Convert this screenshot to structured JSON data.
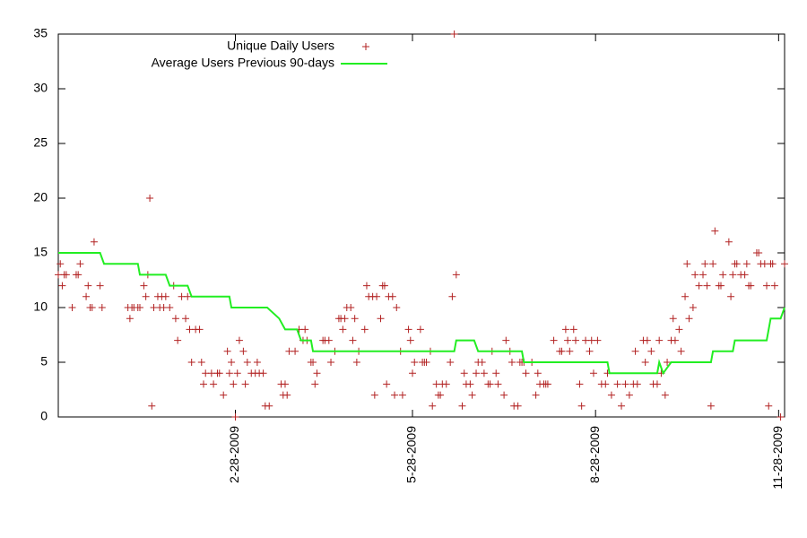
{
  "chart_data": {
    "type": "scatter",
    "xlim": [
      "2008-12-01",
      "2009-12-01"
    ],
    "xticks": [
      {
        "value": "2009-02-28",
        "label": "2-28-2009"
      },
      {
        "value": "2009-05-28",
        "label": "5-28-2009"
      },
      {
        "value": "2009-08-28",
        "label": "8-28-2009"
      },
      {
        "value": "2009-11-28",
        "label": "11-28-2009"
      }
    ],
    "ylim": [
      0,
      35
    ],
    "yticks": [
      0,
      5,
      10,
      15,
      20,
      25,
      30,
      35
    ],
    "legend": "top-left",
    "series": [
      {
        "name": "Unique Daily Users",
        "color": "#b22222",
        "marker": "+",
        "x": [
          "2008-12-01",
          "2008-12-02",
          "2008-12-03",
          "2008-12-04",
          "2008-12-05",
          "2008-12-08",
          "2008-12-10",
          "2008-12-11",
          "2008-12-12",
          "2008-12-15",
          "2008-12-16",
          "2008-12-17",
          "2008-12-18",
          "2008-12-19",
          "2008-12-22",
          "2008-12-23",
          "2009-01-05",
          "2009-01-06",
          "2009-01-07",
          "2009-01-08",
          "2009-01-10",
          "2009-01-11",
          "2009-01-13",
          "2009-01-14",
          "2009-01-15",
          "2009-01-16",
          "2009-01-17",
          "2009-01-18",
          "2009-01-20",
          "2009-01-21",
          "2009-01-22",
          "2009-01-23",
          "2009-01-24",
          "2009-01-26",
          "2009-01-28",
          "2009-01-29",
          "2009-01-30",
          "2009-02-01",
          "2009-02-03",
          "2009-02-04",
          "2009-02-05",
          "2009-02-06",
          "2009-02-08",
          "2009-02-10",
          "2009-02-11",
          "2009-02-12",
          "2009-02-13",
          "2009-02-16",
          "2009-02-17",
          "2009-02-19",
          "2009-02-20",
          "2009-02-22",
          "2009-02-24",
          "2009-02-25",
          "2009-02-26",
          "2009-02-27",
          "2009-02-28",
          "2009-03-01",
          "2009-03-02",
          "2009-03-04",
          "2009-03-05",
          "2009-03-06",
          "2009-03-08",
          "2009-03-10",
          "2009-03-11",
          "2009-03-12",
          "2009-03-14",
          "2009-03-15",
          "2009-03-17",
          "2009-03-23",
          "2009-03-24",
          "2009-03-25",
          "2009-03-26",
          "2009-03-27",
          "2009-03-30",
          "2009-04-01",
          "2009-04-03",
          "2009-04-04",
          "2009-04-05",
          "2009-04-07",
          "2009-04-08",
          "2009-04-09",
          "2009-04-10",
          "2009-04-13",
          "2009-04-14",
          "2009-04-16",
          "2009-04-17",
          "2009-04-19",
          "2009-04-21",
          "2009-04-22",
          "2009-04-23",
          "2009-04-24",
          "2009-04-25",
          "2009-04-27",
          "2009-04-28",
          "2009-04-29",
          "2009-04-30",
          "2009-05-01",
          "2009-05-04",
          "2009-05-05",
          "2009-05-06",
          "2009-05-08",
          "2009-05-09",
          "2009-05-10",
          "2009-05-12",
          "2009-05-13",
          "2009-05-14",
          "2009-05-15",
          "2009-05-16",
          "2009-05-18",
          "2009-05-19",
          "2009-05-20",
          "2009-05-22",
          "2009-05-23",
          "2009-05-26",
          "2009-05-27",
          "2009-05-28",
          "2009-05-29",
          "2009-06-01",
          "2009-06-02",
          "2009-06-03",
          "2009-06-04",
          "2009-06-06",
          "2009-06-07",
          "2009-06-09",
          "2009-06-10",
          "2009-06-11",
          "2009-06-12",
          "2009-06-14",
          "2009-06-16",
          "2009-06-17",
          "2009-06-18",
          "2009-06-19",
          "2009-06-22",
          "2009-06-23",
          "2009-06-24",
          "2009-06-26",
          "2009-06-27",
          "2009-06-29",
          "2009-06-30",
          "2009-07-02",
          "2009-07-03",
          "2009-07-05",
          "2009-07-06",
          "2009-07-07",
          "2009-07-09",
          "2009-07-10",
          "2009-07-13",
          "2009-07-14",
          "2009-07-16",
          "2009-07-17",
          "2009-07-18",
          "2009-07-20",
          "2009-07-21",
          "2009-07-22",
          "2009-07-23",
          "2009-07-24",
          "2009-07-27",
          "2009-07-29",
          "2009-07-30",
          "2009-07-31",
          "2009-08-02",
          "2009-08-03",
          "2009-08-04",
          "2009-08-07",
          "2009-08-10",
          "2009-08-11",
          "2009-08-13",
          "2009-08-14",
          "2009-08-15",
          "2009-08-17",
          "2009-08-18",
          "2009-08-20",
          "2009-08-21",
          "2009-08-23",
          "2009-08-25",
          "2009-08-26",
          "2009-08-27",
          "2009-08-29",
          "2009-08-31",
          "2009-09-02",
          "2009-09-03",
          "2009-09-05",
          "2009-09-08",
          "2009-09-10",
          "2009-09-12",
          "2009-09-14",
          "2009-09-16",
          "2009-09-17",
          "2009-09-18",
          "2009-09-21",
          "2009-09-22",
          "2009-09-23",
          "2009-09-25",
          "2009-09-26",
          "2009-09-28",
          "2009-09-29",
          "2009-09-30",
          "2009-10-02",
          "2009-10-03",
          "2009-10-05",
          "2009-10-06",
          "2009-10-07",
          "2009-10-09",
          "2009-10-10",
          "2009-10-12",
          "2009-10-13",
          "2009-10-14",
          "2009-10-16",
          "2009-10-17",
          "2009-10-19",
          "2009-10-21",
          "2009-10-22",
          "2009-10-23",
          "2009-10-25",
          "2009-10-26",
          "2009-10-27",
          "2009-10-29",
          "2009-10-30",
          "2009-10-31",
          "2009-11-03",
          "2009-11-04",
          "2009-11-05",
          "2009-11-06",
          "2009-11-07",
          "2009-11-09",
          "2009-11-11",
          "2009-11-12",
          "2009-11-13",
          "2009-11-14",
          "2009-11-17",
          "2009-11-18",
          "2009-11-19",
          "2009-11-21",
          "2009-11-22",
          "2009-11-23",
          "2009-11-24",
          "2009-11-25",
          "2009-11-26",
          "2009-11-29",
          "2009-12-01"
        ],
        "values": [
          13,
          14,
          12,
          13,
          13,
          10,
          13,
          13,
          14,
          11,
          12,
          10,
          10,
          16,
          12,
          10,
          10,
          9,
          10,
          10,
          10,
          10,
          12,
          11,
          13,
          20,
          1,
          10,
          11,
          10,
          11,
          10,
          11,
          10,
          12,
          9,
          7,
          11,
          9,
          11,
          8,
          5,
          8,
          8,
          5,
          3,
          4,
          4,
          3,
          4,
          4,
          2,
          6,
          4,
          5,
          3,
          0,
          4,
          7,
          6,
          3,
          5,
          4,
          4,
          5,
          4,
          4,
          1,
          1,
          3,
          2,
          3,
          2,
          6,
          6,
          8,
          7,
          8,
          7,
          5,
          5,
          3,
          4,
          7,
          7,
          7,
          5,
          6,
          9,
          9,
          8,
          9,
          10,
          10,
          7,
          9,
          5,
          6,
          8,
          12,
          11,
          11,
          2,
          11,
          9,
          12,
          12,
          3,
          11,
          11,
          2,
          10,
          6,
          2,
          8,
          7,
          4,
          5,
          8,
          5,
          5,
          5,
          6,
          1,
          3,
          2,
          2,
          3,
          3,
          5,
          11,
          35,
          13,
          1,
          4,
          3,
          3,
          2,
          4,
          5,
          5,
          4,
          3,
          3,
          6,
          4,
          3,
          2,
          7,
          6,
          5,
          1,
          1,
          5,
          5,
          5,
          4,
          5,
          2,
          4,
          3,
          3,
          3,
          3,
          7,
          6,
          6,
          8,
          7,
          6,
          8,
          7,
          3,
          1,
          7,
          6,
          7,
          4,
          7,
          3,
          3,
          4,
          2,
          3,
          1,
          3,
          2,
          3,
          6,
          3,
          7,
          5,
          7,
          6,
          3,
          3,
          7,
          4,
          2,
          5,
          7,
          9,
          7,
          8,
          6,
          11,
          14,
          9,
          10,
          13,
          12,
          13,
          14,
          12,
          1,
          14,
          17,
          12,
          12,
          13,
          16,
          11,
          13,
          14,
          14,
          13,
          13,
          14,
          12,
          12,
          15,
          15,
          14,
          14,
          12,
          1,
          14,
          14,
          12,
          0,
          14
        ]
      },
      {
        "name": "Average Users Previous 90-days",
        "color": "#22ee22",
        "type": "line",
        "x": [
          "2008-12-01",
          "2008-12-22",
          "2008-12-24",
          "2009-01-10",
          "2009-01-11",
          "2009-01-24",
          "2009-01-26",
          "2009-02-04",
          "2009-02-06",
          "2009-02-25",
          "2009-02-26",
          "2009-03-16",
          "2009-03-22",
          "2009-03-25",
          "2009-03-31",
          "2009-04-02",
          "2009-04-07",
          "2009-04-08",
          "2009-06-18",
          "2009-06-19",
          "2009-06-28",
          "2009-06-30",
          "2009-07-22",
          "2009-07-23",
          "2009-09-03",
          "2009-09-04",
          "2009-09-28",
          "2009-09-29",
          "2009-10-01",
          "2009-10-05",
          "2009-10-25",
          "2009-10-26",
          "2009-11-05",
          "2009-11-06",
          "2009-11-22",
          "2009-11-24",
          "2009-11-29",
          "2009-12-01"
        ],
        "values": [
          15,
          15,
          14,
          14,
          13,
          13,
          12,
          12,
          11,
          11,
          10,
          10,
          9,
          8,
          8,
          7,
          7,
          6,
          6,
          7,
          7,
          6,
          6,
          5,
          5,
          4,
          4,
          5,
          4,
          5,
          5,
          6,
          6,
          7,
          7,
          9,
          9,
          10
        ]
      }
    ]
  }
}
